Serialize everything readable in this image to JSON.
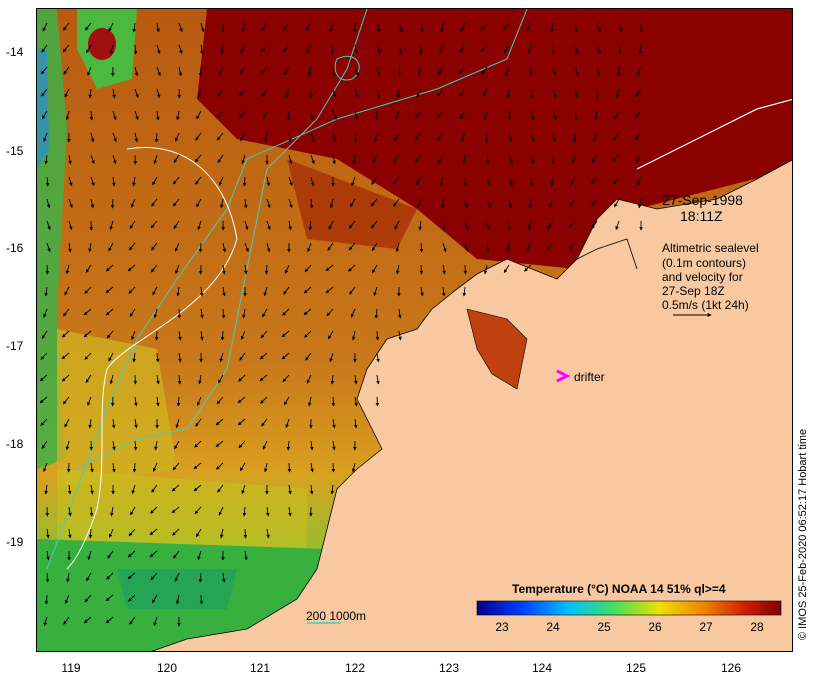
{
  "map": {
    "y_ticks": [
      "-14",
      "-15",
      "-16",
      "-17",
      "-18",
      "-19"
    ],
    "x_ticks": [
      "119",
      "120",
      "121",
      "122",
      "123",
      "124",
      "125",
      "126"
    ],
    "date": "27-Sep-1998",
    "time": "18:11Z",
    "legend_lines": [
      "Altimetric sealevel",
      "(0.1m contours)",
      "and velocity for",
      "27-Sep 18Z",
      "0.5m/s (1kt 24h)"
    ],
    "drifter_label": "drifter",
    "depth_label": "200  1000m",
    "credit": "© IMOS 25-Feb-2020 06:52:17 Hobart time",
    "colorbar": {
      "title": "Temperature (°C) NOAA 14 51% ql>=4",
      "ticks": [
        "23",
        "24",
        "25",
        "26",
        "27",
        "28"
      ]
    },
    "colors": {
      "land": "#f8c9a0",
      "sst_warm": "#8b0000",
      "contour": "#3fd0c0",
      "drifter": "#ff00ff"
    },
    "icons": [
      "velocity-arrow-icon",
      "drifter-icon"
    ]
  }
}
